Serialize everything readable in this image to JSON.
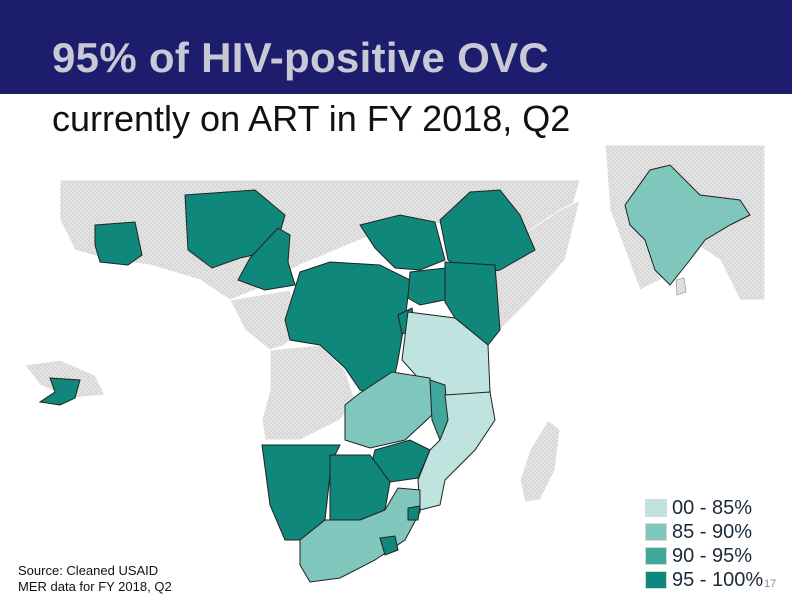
{
  "title": {
    "line1": "95% of HIV-positive OVC",
    "line2": "currently on ART in FY 2018, Q2"
  },
  "colors": {
    "band": "#1d1d6e",
    "no_data": "#dcdcdc",
    "range_00_85": "#bfe3df",
    "range_85_90": "#7fc6bd",
    "range_90_95": "#3fa89b",
    "range_95_100": "#0f877a"
  },
  "legend": {
    "items": [
      {
        "label": "00 - 85%",
        "color": "#bfe3df"
      },
      {
        "label": "85 - 90%",
        "color": "#7fc6bd"
      },
      {
        "label": "90 - 95%",
        "color": "#3fa89b"
      },
      {
        "label": "95 - 100%",
        "color": "#0f877a"
      }
    ]
  },
  "source": {
    "line1": "Source: Cleaned USAID",
    "line2": "MER data for FY 2018, Q2"
  },
  "page_number": "17"
}
